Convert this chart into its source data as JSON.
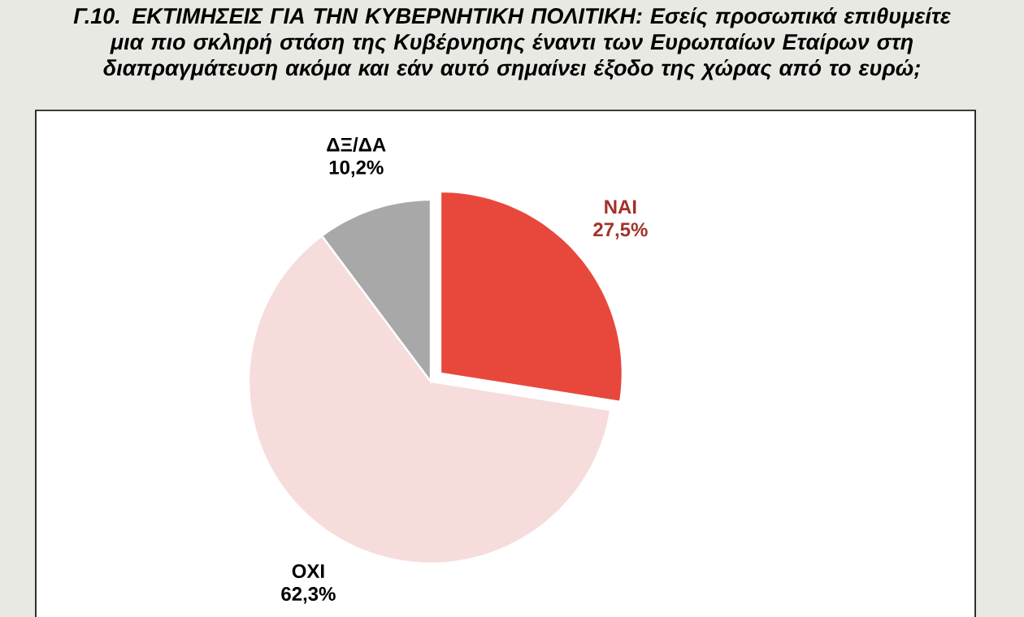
{
  "chart_data": {
    "type": "pie",
    "title": "Γ.10. ΕΚΤΙΜΗΣΕΙΣ ΓΙΑ ΤΗΝ ΚΥΒΕΡΝΗΤΙΚΗ ΠΟΛΙΤΙΚΗ: Εσείς προσωπικά επιθυμείτε μια πιο σκληρή στάση της Κυβέρνησης έναντι των Ευρωπαίων Εταίρων στη διαπραγμάτευση ακόμα και εάν αυτό σημαίνει έξοδο της χώρας από το ευρώ;",
    "categories": [
      "ΝΑΙ",
      "ΟΧΙ",
      "ΔΞ/ΔΑ"
    ],
    "values": [
      27.5,
      62.3,
      10.2
    ],
    "value_labels": [
      "27,5%",
      "62,3%",
      "10,2%"
    ],
    "colors": [
      "#e8483c",
      "#f7dcdc",
      "#a8a8a8"
    ]
  }
}
